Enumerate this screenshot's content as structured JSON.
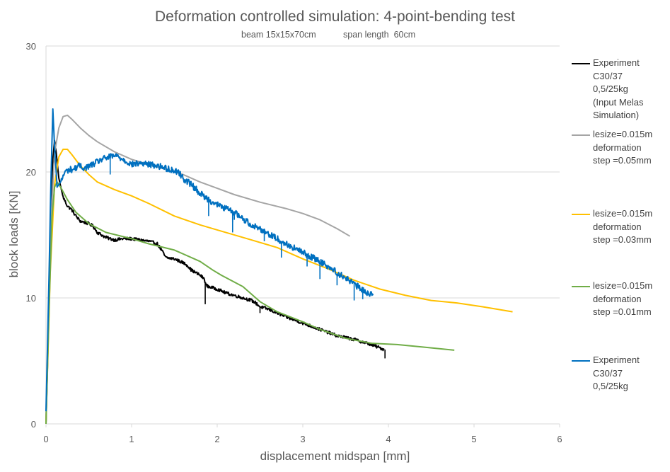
{
  "chart_data": {
    "type": "line",
    "title": "Deformation controlled simulation: 4-point-bending test",
    "subtitle_left": "beam 15x15x70cm",
    "subtitle_right": "span length  60cm",
    "xlabel": "displacement midspan [mm]",
    "ylabel": "block loads  [KN]",
    "xlim": [
      0,
      6
    ],
    "ylim": [
      0,
      30
    ],
    "x_ticks": [
      0,
      1,
      2,
      3,
      4,
      5,
      6
    ],
    "y_ticks": [
      0,
      10,
      20,
      30
    ],
    "grid": "horizontal",
    "legend_position": "right",
    "series": [
      {
        "name": "Experiment C30/37 0,5/25kg (Input Melas Simulation)",
        "legend_lines": [
          "Experiment",
          "C30/37",
          "0,5/25kg",
          "(Input Melas",
          "Simulation)"
        ],
        "color": "#000000",
        "noise": 0.12,
        "points": [
          [
            0,
            0
          ],
          [
            0.03,
            8
          ],
          [
            0.06,
            18
          ],
          [
            0.08,
            21
          ],
          [
            0.1,
            22.5
          ],
          [
            0.12,
            21.5
          ],
          [
            0.15,
            19.5
          ],
          [
            0.2,
            18
          ],
          [
            0.25,
            17.3
          ],
          [
            0.3,
            17
          ],
          [
            0.35,
            16.5
          ],
          [
            0.4,
            16.1
          ],
          [
            0.5,
            15.9
          ],
          [
            0.55,
            15.7
          ],
          [
            0.6,
            15.2
          ],
          [
            0.7,
            14.8
          ],
          [
            0.8,
            14.6
          ],
          [
            0.9,
            14.7
          ],
          [
            1.0,
            14.7
          ],
          [
            1.1,
            14.6
          ],
          [
            1.2,
            14.5
          ],
          [
            1.3,
            14.3
          ],
          [
            1.35,
            13.8
          ],
          [
            1.4,
            13.2
          ],
          [
            1.5,
            13.1
          ],
          [
            1.6,
            12.8
          ],
          [
            1.65,
            12.6
          ],
          [
            1.7,
            12.2
          ],
          [
            1.8,
            11.8
          ],
          [
            1.85,
            11.5
          ],
          [
            1.87,
            11
          ],
          [
            1.9,
            10.9
          ],
          [
            2.0,
            10.7
          ],
          [
            2.1,
            10.4
          ],
          [
            2.2,
            10.2
          ],
          [
            2.3,
            10.0
          ],
          [
            2.4,
            9.8
          ],
          [
            2.45,
            9.6
          ],
          [
            2.5,
            9.3
          ],
          [
            2.6,
            9.1
          ],
          [
            2.7,
            8.8
          ],
          [
            2.8,
            8.5
          ],
          [
            3.0,
            8.0
          ],
          [
            3.2,
            7.5
          ],
          [
            3.4,
            7.0
          ],
          [
            3.6,
            6.7
          ],
          [
            3.8,
            6.3
          ],
          [
            3.95,
            5.9
          ]
        ],
        "dips": [
          [
            1.86,
            9.5
          ],
          [
            2.5,
            8.8
          ],
          [
            3.96,
            5.2
          ]
        ]
      },
      {
        "name": "lesize=0.015m deformation step =0.05mm",
        "legend_lines": [
          "lesize=0.015m",
          "deformation",
          "step =0.05mm"
        ],
        "color": "#a5a5a5",
        "noise": 0,
        "points": [
          [
            0,
            0
          ],
          [
            0.05,
            15
          ],
          [
            0.1,
            21.5
          ],
          [
            0.15,
            23.5
          ],
          [
            0.2,
            24.4
          ],
          [
            0.25,
            24.5
          ],
          [
            0.3,
            24.2
          ],
          [
            0.4,
            23.5
          ],
          [
            0.5,
            22.9
          ],
          [
            0.6,
            22.4
          ],
          [
            0.8,
            21.6
          ],
          [
            1.0,
            21.0
          ],
          [
            1.2,
            20.6
          ],
          [
            1.4,
            20.2
          ],
          [
            1.6,
            19.8
          ],
          [
            1.8,
            19.2
          ],
          [
            2.0,
            18.7
          ],
          [
            2.2,
            18.2
          ],
          [
            2.5,
            17.6
          ],
          [
            2.8,
            17.1
          ],
          [
            3.0,
            16.7
          ],
          [
            3.2,
            16.2
          ],
          [
            3.4,
            15.5
          ],
          [
            3.55,
            14.9
          ]
        ],
        "dips": []
      },
      {
        "name": "lesize=0.015m deformation step =0.03mm",
        "legend_lines": [
          "lesize=0.015m",
          "deformation",
          "step =0.03mm"
        ],
        "color": "#ffc000",
        "noise": 0,
        "points": [
          [
            0,
            0
          ],
          [
            0.05,
            12
          ],
          [
            0.1,
            19
          ],
          [
            0.15,
            21.2
          ],
          [
            0.2,
            21.8
          ],
          [
            0.25,
            21.8
          ],
          [
            0.3,
            21.4
          ],
          [
            0.4,
            20.5
          ],
          [
            0.5,
            19.8
          ],
          [
            0.6,
            19.2
          ],
          [
            0.8,
            18.6
          ],
          [
            1.0,
            18.1
          ],
          [
            1.2,
            17.5
          ],
          [
            1.5,
            16.5
          ],
          [
            1.8,
            15.8
          ],
          [
            2.0,
            15.4
          ],
          [
            2.4,
            14.6
          ],
          [
            2.7,
            14.0
          ],
          [
            3.0,
            13.1
          ],
          [
            3.3,
            12.3
          ],
          [
            3.6,
            11.4
          ],
          [
            3.9,
            10.7
          ],
          [
            4.2,
            10.2
          ],
          [
            4.5,
            9.8
          ],
          [
            4.8,
            9.6
          ],
          [
            5.1,
            9.3
          ],
          [
            5.45,
            8.9
          ]
        ],
        "dips": []
      },
      {
        "name": "lesize=0.015m deformation step =0.01mm",
        "legend_lines": [
          "lesize=0.015m",
          "deformation",
          "step =0.01mm"
        ],
        "color": "#70ad47",
        "noise": 0,
        "points": [
          [
            0,
            0
          ],
          [
            0.04,
            10
          ],
          [
            0.07,
            16.5
          ],
          [
            0.1,
            18.8
          ],
          [
            0.13,
            19.2
          ],
          [
            0.17,
            18.8
          ],
          [
            0.25,
            17.8
          ],
          [
            0.35,
            16.8
          ],
          [
            0.5,
            15.9
          ],
          [
            0.7,
            15.2
          ],
          [
            1.0,
            14.7
          ],
          [
            1.2,
            14.3
          ],
          [
            1.5,
            13.8
          ],
          [
            1.8,
            12.9
          ],
          [
            1.95,
            12.2
          ],
          [
            2.05,
            11.8
          ],
          [
            2.3,
            10.9
          ],
          [
            2.5,
            9.7
          ],
          [
            2.7,
            8.9
          ],
          [
            3.0,
            8.1
          ],
          [
            3.2,
            7.5
          ],
          [
            3.5,
            6.8
          ],
          [
            3.8,
            6.4
          ],
          [
            4.1,
            6.3
          ],
          [
            4.4,
            6.1
          ],
          [
            4.77,
            5.85
          ]
        ],
        "dips": []
      },
      {
        "name": "Experiment C30/37 0,5/25kg",
        "legend_lines": [
          "Experiment",
          "C30/37",
          "0,5/25kg"
        ],
        "color": "#0070c0",
        "noise": 0.25,
        "points": [
          [
            0,
            1
          ],
          [
            0.03,
            10
          ],
          [
            0.06,
            20
          ],
          [
            0.08,
            25
          ],
          [
            0.1,
            22
          ],
          [
            0.13,
            18.8
          ],
          [
            0.18,
            19.3
          ],
          [
            0.22,
            20.0
          ],
          [
            0.28,
            20.2
          ],
          [
            0.32,
            20.2
          ],
          [
            0.38,
            20.5
          ],
          [
            0.45,
            20.3
          ],
          [
            0.55,
            20.6
          ],
          [
            0.65,
            21.0
          ],
          [
            0.75,
            21.2
          ],
          [
            0.82,
            21.3
          ],
          [
            0.9,
            21.0
          ],
          [
            1.0,
            20.6
          ],
          [
            1.1,
            20.7
          ],
          [
            1.3,
            20.5
          ],
          [
            1.45,
            20.2
          ],
          [
            1.55,
            20.0
          ],
          [
            1.6,
            19.5
          ],
          [
            1.7,
            19.0
          ],
          [
            1.8,
            18.3
          ],
          [
            1.9,
            17.8
          ],
          [
            2.0,
            17.4
          ],
          [
            2.1,
            17.1
          ],
          [
            2.2,
            16.8
          ],
          [
            2.3,
            16.3
          ],
          [
            2.4,
            15.8
          ],
          [
            2.5,
            15.5
          ],
          [
            2.6,
            15.1
          ],
          [
            2.7,
            14.7
          ],
          [
            2.8,
            14.3
          ],
          [
            3.0,
            13.6
          ],
          [
            3.2,
            12.9
          ],
          [
            3.3,
            12.5
          ],
          [
            3.4,
            12.0
          ],
          [
            3.5,
            11.6
          ],
          [
            3.6,
            11.1
          ],
          [
            3.7,
            10.6
          ],
          [
            3.82,
            10.2
          ]
        ],
        "dips": [
          [
            2.18,
            16.0
          ],
          [
            2.18,
            15.2
          ],
          [
            2.2,
            16.2
          ],
          [
            2.75,
            13.2
          ],
          [
            3.05,
            12.5
          ],
          [
            3.2,
            11.5
          ],
          [
            3.6,
            9.8
          ],
          [
            3.7,
            9.9
          ],
          [
            0.75,
            19.8
          ],
          [
            1.9,
            16.5
          ],
          [
            2.55,
            14.5
          ],
          [
            3.4,
            11.0
          ]
        ]
      }
    ]
  }
}
